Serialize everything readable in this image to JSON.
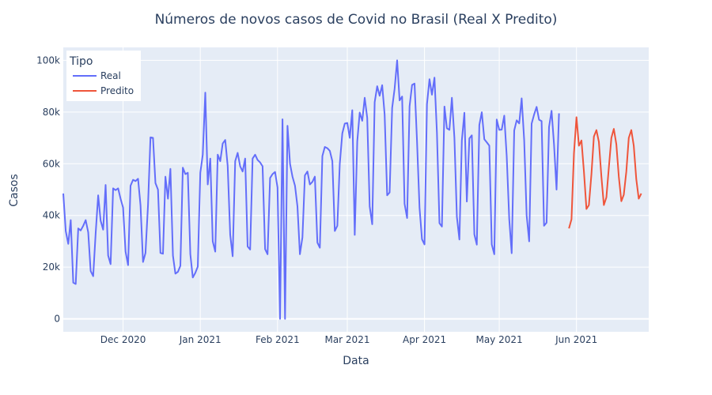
{
  "chart_data": {
    "type": "line",
    "title": "Números de novos casos de Covid no Brasil (Real X Predito)",
    "xlabel": "Data",
    "ylabel": "Casos",
    "xlim": [
      "2020-11-07",
      "2021-06-30"
    ],
    "ylim": [
      -5000,
      105000
    ],
    "grid": true,
    "legend_position": "top-left",
    "background": "#e5ecf6",
    "x_ticks": [
      {
        "date": "2020-12-01",
        "label": "Dec 2020"
      },
      {
        "date": "2021-01-01",
        "label": "Jan 2021"
      },
      {
        "date": "2021-02-01",
        "label": "Feb 2021"
      },
      {
        "date": "2021-03-01",
        "label": "Mar 2021"
      },
      {
        "date": "2021-04-01",
        "label": "Apr 2021"
      },
      {
        "date": "2021-05-01",
        "label": "May 2021"
      },
      {
        "date": "2021-06-01",
        "label": "Jun 2021"
      }
    ],
    "y_ticks": [
      {
        "value": 0,
        "label": "0"
      },
      {
        "value": 20000,
        "label": "20k"
      },
      {
        "value": 40000,
        "label": "40k"
      },
      {
        "value": 60000,
        "label": "60k"
      },
      {
        "value": 80000,
        "label": "80k"
      },
      {
        "value": 100000,
        "label": "100k"
      }
    ],
    "legend": {
      "title": "Tipo"
    },
    "series": [
      {
        "name": "Real",
        "color": "#636efa",
        "start_date": "2020-11-07",
        "values": [
          48500,
          34000,
          29000,
          38200,
          14000,
          13500,
          35000,
          34200,
          36000,
          38200,
          33500,
          18500,
          16500,
          33000,
          47800,
          38000,
          34500,
          51800,
          24500,
          21200,
          50500,
          49800,
          50500,
          46500,
          43000,
          26000,
          20800,
          51500,
          53800,
          53300,
          54200,
          44000,
          22000,
          25500,
          44000,
          70200,
          70000,
          52500,
          50000,
          25500,
          25200,
          55000,
          46500,
          58000,
          24500,
          17500,
          18200,
          20500,
          58500,
          56000,
          56500,
          25000,
          16000,
          17800,
          20200,
          56500,
          63500,
          87500,
          52000,
          62000,
          30000,
          26000,
          63500,
          61000,
          67800,
          69200,
          59200,
          32500,
          24200,
          61000,
          64200,
          59000,
          57000,
          62000,
          28000,
          26800,
          62000,
          63500,
          61500,
          60500,
          59000,
          27000,
          25000,
          54500,
          56000,
          56800,
          50800,
          0,
          77200,
          0,
          74700,
          60000,
          55000,
          51500,
          43500,
          25000,
          31500,
          55500,
          57000,
          52000,
          53000,
          55000,
          29500,
          27500,
          63000,
          66500,
          66000,
          65000,
          61000,
          34000,
          36000,
          60000,
          71800,
          75500,
          75800,
          70000,
          80700,
          32500,
          68700,
          79800,
          76600,
          85500,
          77700,
          43500,
          36600,
          83800,
          90000,
          86300,
          90400,
          79000,
          47800,
          48900,
          81600,
          89000,
          100000,
          84500,
          86000,
          44500,
          39000,
          82200,
          90500,
          91000,
          69000,
          43000,
          30800,
          28800,
          83000,
          92700,
          86700,
          93300,
          72000,
          37000,
          35700,
          82100,
          73700,
          73100,
          85500,
          70000,
          39500,
          30700,
          69000,
          79700,
          45400,
          69800,
          71000,
          32700,
          28700,
          75000,
          79900,
          69500,
          68300,
          67000,
          28800,
          25000,
          77100,
          73100,
          73200,
          78600,
          63000,
          38600,
          25400,
          72900,
          76800,
          75600,
          85300,
          69000,
          40000,
          30000,
          75500,
          79000,
          82000,
          77000,
          76500,
          36000,
          37200,
          74200,
          80500,
          67500,
          50000,
          79500
        ]
      },
      {
        "name": "Predito",
        "color": "#ef553b",
        "start_date": "2021-05-29",
        "values": [
          35000,
          38500,
          64000,
          78000,
          67000,
          69000,
          57000,
          42500,
          44000,
          56000,
          70500,
          73000,
          68500,
          55000,
          44000,
          47000,
          58500,
          70000,
          73500,
          67500,
          55000,
          45500,
          48000,
          57000,
          70000,
          73000,
          67000,
          54000,
          46500,
          48500
        ]
      }
    ]
  }
}
